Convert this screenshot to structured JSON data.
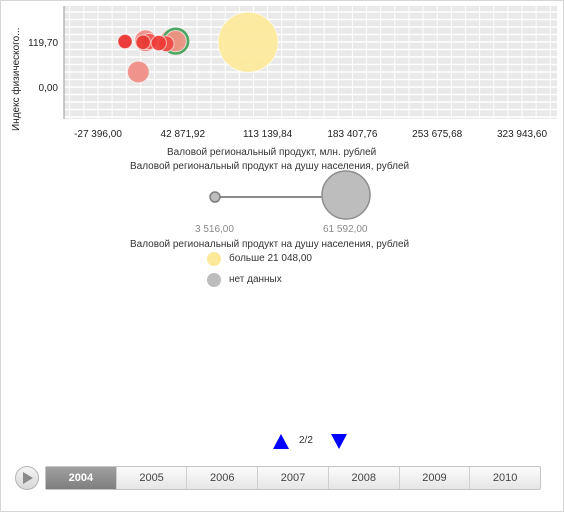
{
  "chart_data": {
    "type": "bubble",
    "ylabel": "Индекс физического...",
    "xlabel": "Валовой региональный продукт, млн. рублей",
    "x_ticks": [
      "-27 396,00",
      "42 871,92",
      "113 139,84",
      "183 407,76",
      "253 675,68",
      "323 943,60"
    ],
    "x_tick_values": [
      -27396.0,
      42871.92,
      113139.84,
      183407.76,
      253675.68,
      323943.6
    ],
    "y_ticks": [
      "119,70",
      "0,00"
    ],
    "y_tick_values": [
      119.7,
      0.0
    ],
    "grid": true,
    "bubbles": [
      {
        "x": 37000,
        "y": 122,
        "size": 7800,
        "color": "#e9907e",
        "ring": "#4fa663"
      },
      {
        "x": 12000,
        "y": 123,
        "size": 8100,
        "color": "#ed8a84"
      },
      {
        "x": 33000,
        "y": 123,
        "size": 8600,
        "color": "#f2a7a0"
      },
      {
        "x": 6000,
        "y": 40,
        "size": 8100,
        "color": "#f08b83"
      },
      {
        "x": 29000,
        "y": 115,
        "size": 4300,
        "color": "#ee4a44"
      },
      {
        "x": 23000,
        "y": 117,
        "size": 4000,
        "color": "#ef3b36"
      },
      {
        "x": 15000,
        "y": 121,
        "size": 4500,
        "color": "#ee5a52"
      },
      {
        "x": 10000,
        "y": 119,
        "size": 3600,
        "color": "#e83a33"
      },
      {
        "x": -5000,
        "y": 121,
        "size": 3500,
        "color": "#ea2f2a"
      },
      {
        "x": 97000,
        "y": 119,
        "size": 61592,
        "color": "#fde99a"
      }
    ]
  },
  "size_legend": {
    "title": "Валовой региональный продукт на душу населения, рублей",
    "min_label": "3 516,00",
    "max_label": "61 592,00",
    "min_value": 3516.0,
    "max_value": 61592.0
  },
  "color_legend": {
    "title": "Валовой региональный продукт на душу населения, рублей",
    "items": [
      {
        "label": "больше 21 048,00",
        "color": "#fde99a"
      },
      {
        "label": "нет данных",
        "color": "#bdbdbd"
      }
    ]
  },
  "pager": {
    "label": "2/2",
    "arrow_color": "#0000ff"
  },
  "timeline": {
    "years": [
      "2004",
      "2005",
      "2006",
      "2007",
      "2008",
      "2009",
      "2010"
    ],
    "selected": "2004"
  }
}
